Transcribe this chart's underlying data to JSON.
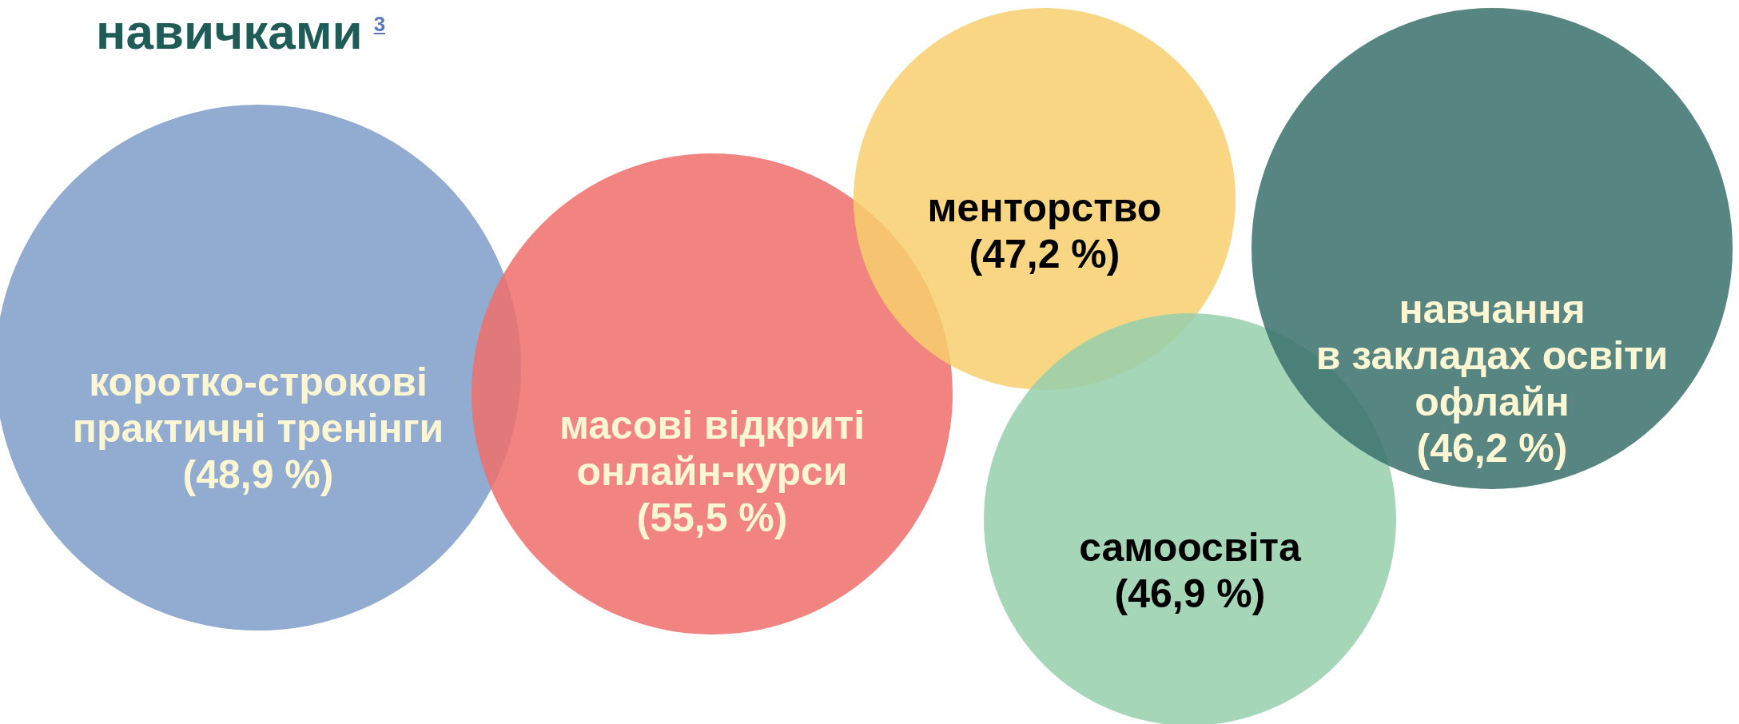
{
  "chart_data": {
    "type": "other",
    "title": "навичками$^{3}$",
    "categories": [
      "коротко-строкові\nпрактичні тренінги",
      "масові відкриті\nонлайн-курси",
      "менторство",
      "самоосвіта",
      "навчання\nв закладах освіти\nофлайн"
    ],
    "values": [
      48.9,
      55.5,
      47.2,
      46.9,
      46.2
    ],
    "value_labels": [
      "(48,9 %)",
      "(55,5 %)",
      "(47,2 %)",
      "(46,9 %)",
      "(46,2 %)"
    ],
    "colors": [
      "#7f9cc8",
      "#ee6e6a",
      "#f7cf6e",
      "#96cfac",
      "#3a716c"
    ]
  }
}
